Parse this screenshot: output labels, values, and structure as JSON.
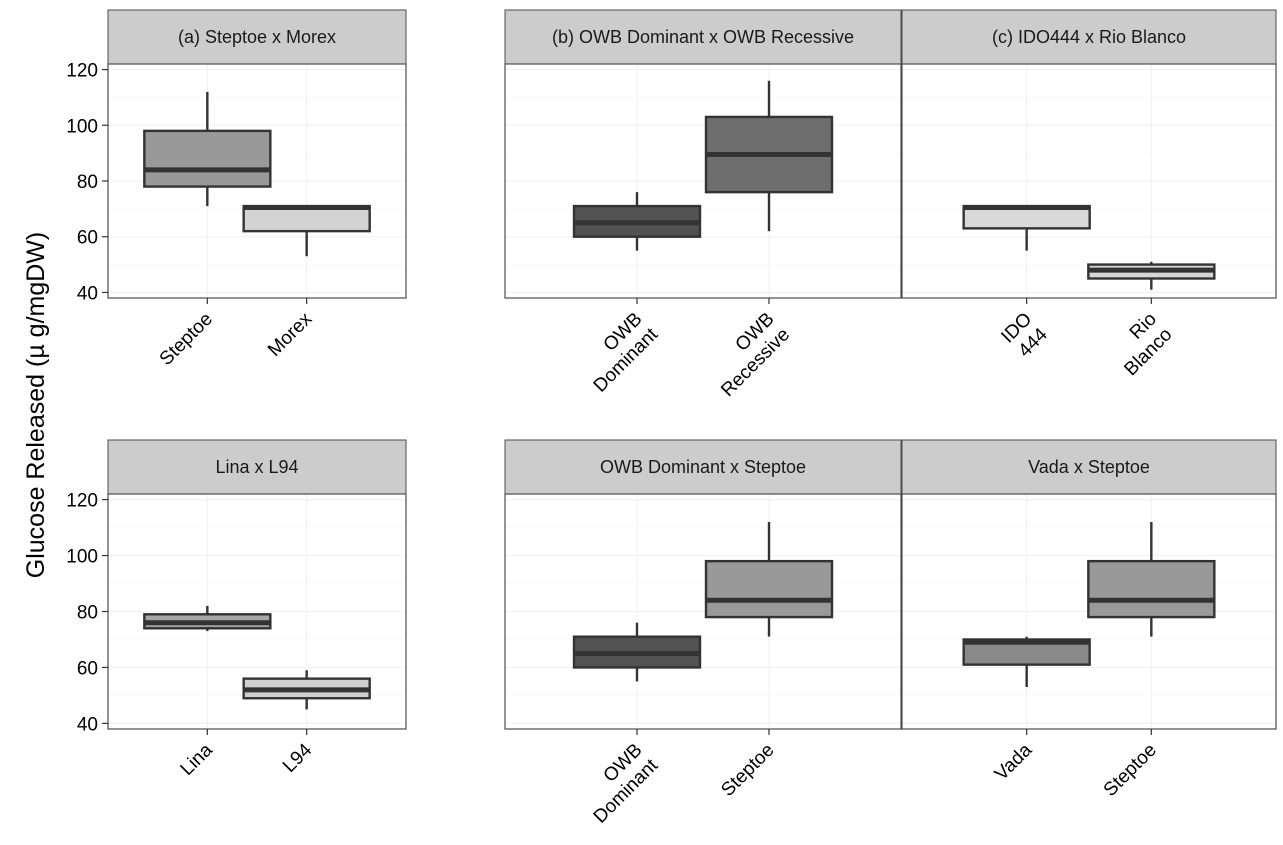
{
  "chart_data": {
    "type": "box",
    "ylabel": "Glucose Released (µ g/mgDW)",
    "yticks": [
      40,
      60,
      80,
      100,
      120
    ],
    "ylim": [
      38,
      122
    ],
    "grid": true,
    "panels": [
      {
        "title": "(a) Steptoe x Morex",
        "boxes": [
          {
            "label": [
              "Steptoe"
            ],
            "whisker_low": 71,
            "q1": 78,
            "median": 84,
            "q3": 98,
            "whisker_high": 112,
            "fill": "#999999"
          },
          {
            "label": [
              "Morex"
            ],
            "whisker_low": 53,
            "q1": 62,
            "median": 70.5,
            "q3": 71,
            "whisker_high": 71,
            "fill": "#d3d3d3"
          }
        ]
      },
      {
        "title": "(b) OWB Dominant x OWB Recessive",
        "boxes": [
          {
            "label": [
              "OWB",
              "Dominant"
            ],
            "whisker_low": 55,
            "q1": 60,
            "median": 65,
            "q3": 71,
            "whisker_high": 76,
            "fill": "#525252"
          },
          {
            "label": [
              "OWB",
              "Recessive"
            ],
            "whisker_low": 62,
            "q1": 76,
            "median": 89.5,
            "q3": 103,
            "whisker_high": 116,
            "fill": "#6e6e6e"
          }
        ]
      },
      {
        "title": "(c) IDO444 x Rio Blanco",
        "boxes": [
          {
            "label": [
              "IDO",
              "444"
            ],
            "whisker_low": 55,
            "q1": 63,
            "median": 70.5,
            "q3": 71,
            "whisker_high": 71,
            "fill": "#d9d9d9"
          },
          {
            "label": [
              "Rio",
              "Blanco"
            ],
            "whisker_low": 41,
            "q1": 45,
            "median": 48,
            "q3": 50,
            "whisker_high": 51,
            "fill": "#d6d6d6"
          }
        ]
      },
      {
        "title": "Lina x L94",
        "boxes": [
          {
            "label": [
              "Lina"
            ],
            "whisker_low": 73,
            "q1": 74,
            "median": 76,
            "q3": 79,
            "whisker_high": 82,
            "fill": "#a6a6a6"
          },
          {
            "label": [
              "L94"
            ],
            "whisker_low": 45,
            "q1": 49,
            "median": 52,
            "q3": 56,
            "whisker_high": 59,
            "fill": "#cfcfcf"
          }
        ]
      },
      {
        "title": "OWB Dominant x Steptoe",
        "boxes": [
          {
            "label": [
              "OWB",
              "Dominant"
            ],
            "whisker_low": 55,
            "q1": 60,
            "median": 65,
            "q3": 71,
            "whisker_high": 76,
            "fill": "#525252"
          },
          {
            "label": [
              "Steptoe"
            ],
            "whisker_low": 71,
            "q1": 78,
            "median": 84,
            "q3": 98,
            "whisker_high": 112,
            "fill": "#999999"
          }
        ]
      },
      {
        "title": "Vada x Steptoe",
        "boxes": [
          {
            "label": [
              "Vada"
            ],
            "whisker_low": 53,
            "q1": 61,
            "median": 69,
            "q3": 70,
            "whisker_high": 71,
            "fill": "#8a8a8a"
          },
          {
            "label": [
              "Steptoe"
            ],
            "whisker_low": 71,
            "q1": 78,
            "median": 84,
            "q3": 98,
            "whisker_high": 112,
            "fill": "#999999"
          }
        ]
      }
    ]
  }
}
